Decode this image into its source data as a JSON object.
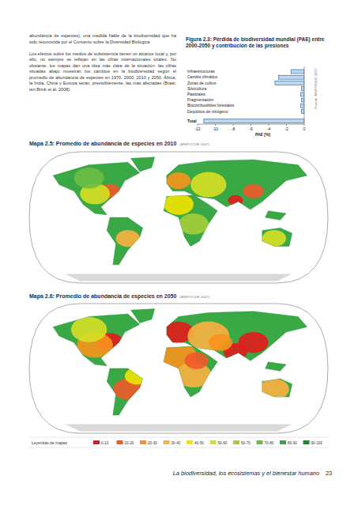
{
  "text": {
    "paragraphs": [
      "abundancia de especies), una medida fiable de la biodiversidad que ha sido reconocida por el Convenio sobre la Diversidad Biológica.",
      "Los efectos sobre los medios de subsistencia tienen un alcance local y, por ello, no siempre se reflejan en las cifras internacionales totales. No obstante, los mapas dan una idea más clara de la situación: las cifras situadas abajo muestran los cambios en la biodiversidad según el promedio de abundancia de especies en 1970, 2000, 2010 y 2050. África, la India, China y Europa serán, previsiblemente, las más afectadas (Braat, ten Brink et al. 2008)."
    ]
  },
  "chart_data": {
    "type": "bar",
    "title": "Figura 2.3: Pérdida de biodiversidad mundial (PAE) entre 2000-2050 y contribución de las presiones",
    "source": "Fuente: MNP/OCDE 2007",
    "orientation": "horizontal",
    "categories": [
      "Infraestructuras",
      "Cambio climático",
      "Zonas de cultivo",
      "Silvicultura",
      "Pastizales",
      "Fragmentación",
      "Biocombustibles forestales",
      "Depósitos de nitrógeno",
      "Total"
    ],
    "values": [
      -1.5,
      -2.9,
      -3.3,
      -0.3,
      -0.4,
      -0.3,
      -0.4,
      -0.3,
      -11.3
    ],
    "color": "#bdd7ee",
    "xlabel": "PAE [%]",
    "xlim": [
      -12,
      0
    ],
    "xticks": [
      -12,
      -10,
      -8,
      -6,
      -4,
      -2,
      0
    ],
    "grid": false
  },
  "maps": [
    {
      "title": "Mapa 2.5: Promedio de abundancia de especies en 2010",
      "source": "(MNP/OCDE 2007)"
    },
    {
      "title": "Mapa 2.6: Promedio de abundancia de especies en 2050",
      "source": "(MNP/OCDE 2007)"
    }
  ],
  "legend": {
    "label": "Leyendas de mapas",
    "items": [
      {
        "label": "0-10",
        "color": "#e31a1c"
      },
      {
        "label": "10-20",
        "color": "#f1592a"
      },
      {
        "label": "20-30",
        "color": "#f7941d"
      },
      {
        "label": "30-40",
        "color": "#fbb040"
      },
      {
        "label": "40-50",
        "color": "#f2e300"
      },
      {
        "label": "50-60",
        "color": "#d7df23"
      },
      {
        "label": "60-70",
        "color": "#a6ce39"
      },
      {
        "label": "70-80",
        "color": "#6cbd45"
      },
      {
        "label": "80-90",
        "color": "#39a845"
      },
      {
        "label": "90-100",
        "color": "#1b8a3a"
      }
    ]
  },
  "footer": {
    "text": "La biodiversidad, los ecosistemas y el bienestar humano",
    "page": 23
  }
}
